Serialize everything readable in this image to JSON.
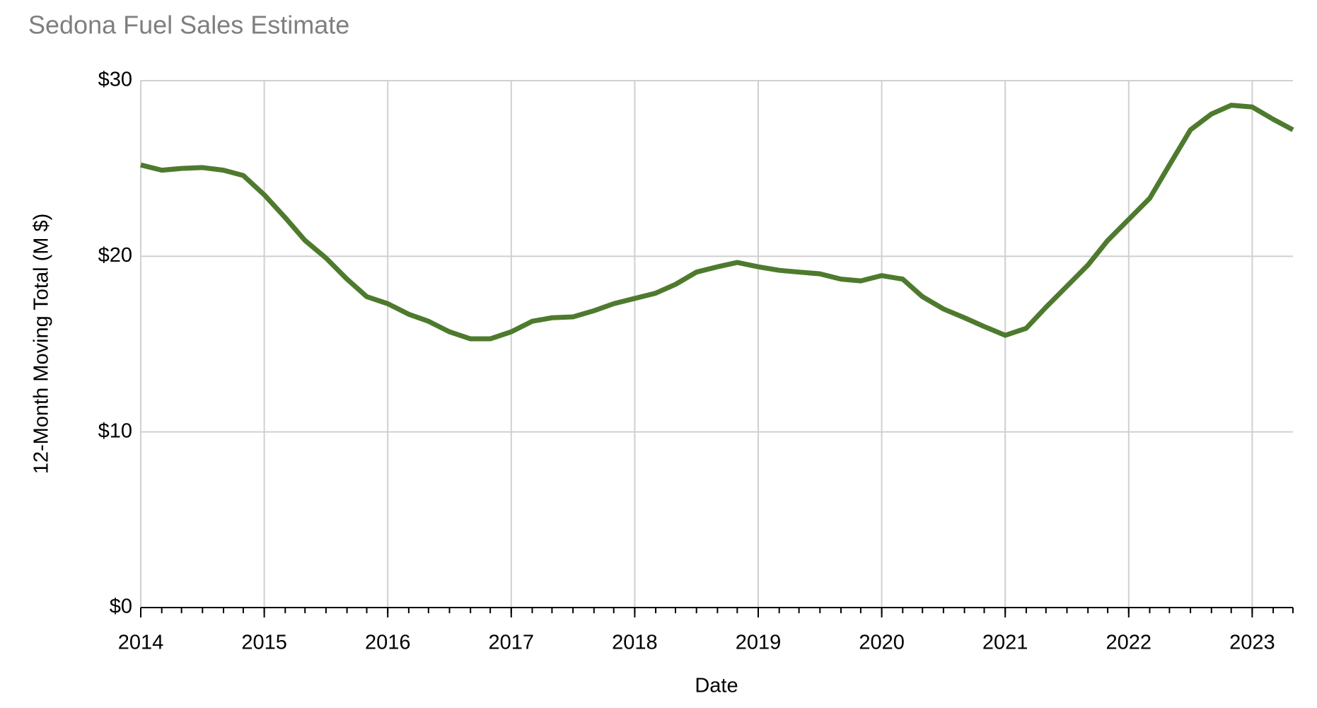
{
  "chart_data": {
    "type": "line",
    "title": "Sedona Fuel Sales Estimate",
    "xlabel": "Date",
    "ylabel": "12-Month Moving Total (M $)",
    "x": [
      2014.0,
      2014.17,
      2014.33,
      2014.5,
      2014.67,
      2014.83,
      2015.0,
      2015.17,
      2015.33,
      2015.5,
      2015.67,
      2015.83,
      2016.0,
      2016.17,
      2016.33,
      2016.5,
      2016.67,
      2016.83,
      2017.0,
      2017.17,
      2017.33,
      2017.5,
      2017.67,
      2017.83,
      2018.0,
      2018.17,
      2018.33,
      2018.5,
      2018.67,
      2018.83,
      2019.0,
      2019.17,
      2019.33,
      2019.5,
      2019.67,
      2019.83,
      2020.0,
      2020.17,
      2020.33,
      2020.5,
      2020.67,
      2020.83,
      2021.0,
      2021.17,
      2021.33,
      2021.5,
      2021.67,
      2021.83,
      2022.0,
      2022.17,
      2022.33,
      2022.5,
      2022.67,
      2022.83,
      2023.0,
      2023.17,
      2023.33
    ],
    "series": [
      {
        "name": "12-Month Moving Total",
        "color": "#4e7a2e",
        "values": [
          25.2,
          24.9,
          25.0,
          25.05,
          24.9,
          24.6,
          23.5,
          22.2,
          20.9,
          19.9,
          18.7,
          17.7,
          17.3,
          16.7,
          16.3,
          15.7,
          15.3,
          15.3,
          15.7,
          16.3,
          16.5,
          16.55,
          16.9,
          17.3,
          17.6,
          17.9,
          18.4,
          19.1,
          19.4,
          19.65,
          19.4,
          19.2,
          19.1,
          19.0,
          18.7,
          18.6,
          18.9,
          18.7,
          17.7,
          17.0,
          16.5,
          16.0,
          15.5,
          15.9,
          17.1,
          18.3,
          19.5,
          20.9,
          22.1,
          23.3,
          25.2,
          27.2,
          28.1,
          28.6,
          28.5,
          27.8,
          27.2
        ]
      }
    ],
    "xlim": [
      2014,
      2023.33
    ],
    "xticks": [
      2014,
      2015,
      2016,
      2017,
      2018,
      2019,
      2020,
      2021,
      2022,
      2023
    ],
    "ylim": [
      0,
      30
    ],
    "yticks": [
      {
        "value": 0,
        "label": "$0"
      },
      {
        "value": 10,
        "label": "$10"
      },
      {
        "value": 20,
        "label": "$20"
      },
      {
        "value": 30,
        "label": "$30"
      }
    ],
    "grid": true
  }
}
